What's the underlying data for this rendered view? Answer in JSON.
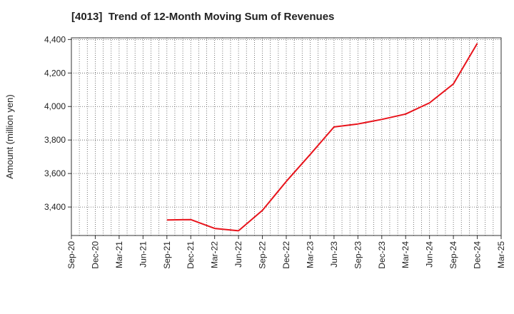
{
  "chart_data": {
    "type": "line",
    "title": "[4013]  Trend of 12-Month Moving Sum of Revenues",
    "ylabel": "Amount (million yen)",
    "xlabel": "",
    "ylim": [
      3230,
      4410
    ],
    "yticks": [
      3400,
      3600,
      3800,
      4000,
      4200,
      4400
    ],
    "ytick_labels": [
      "3,400",
      "3,600",
      "3,800",
      "4,000",
      "4,200",
      "4,400"
    ],
    "x_range": [
      "Sep-20",
      "Mar-25"
    ],
    "xtick_labels": [
      "Sep-20",
      "Dec-20",
      "Mar-21",
      "Jun-21",
      "Sep-21",
      "Dec-21",
      "Mar-22",
      "Jun-22",
      "Sep-22",
      "Dec-22",
      "Mar-23",
      "Jun-23",
      "Sep-23",
      "Dec-23",
      "Mar-24",
      "Jun-24",
      "Sep-24",
      "Dec-24",
      "Mar-25"
    ],
    "grid": true,
    "series": [
      {
        "color": "#e8141c",
        "x": [
          "Sep-21",
          "Dec-21",
          "Mar-22",
          "Jun-22",
          "Sep-22",
          "Dec-22",
          "Mar-23",
          "Jun-23",
          "Sep-23",
          "Dec-23",
          "Mar-24",
          "Jun-24",
          "Sep-24",
          "Dec-24"
        ],
        "values": [
          3323,
          3325,
          3272,
          3258,
          3380,
          3553,
          3713,
          3878,
          3896,
          3923,
          3955,
          4022,
          4135,
          4377
        ]
      }
    ]
  }
}
